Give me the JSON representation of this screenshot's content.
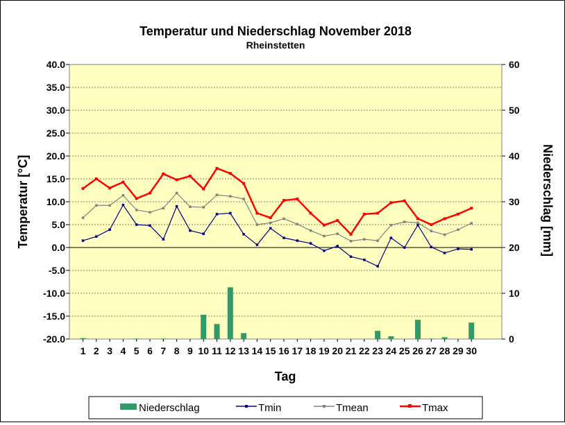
{
  "chart_data": {
    "type": "line",
    "title": "Temperatur und Niederschlag November 2018",
    "subtitle": "Rheinstetten",
    "xlabel": "Tag",
    "ylabel_left": "Temperatur [°C]",
    "ylabel_right": "Niederschlag [mm]",
    "ylim_left": [
      -20,
      40
    ],
    "ylim_right": [
      0,
      60
    ],
    "yticks_left": [
      "-20.0",
      "-15.0",
      "-10.0",
      "-5.0",
      "0.0",
      "5.0",
      "10.0",
      "15.0",
      "20.0",
      "25.0",
      "30.0",
      "35.0",
      "40.0"
    ],
    "yticks_right": [
      "0",
      "10",
      "20",
      "30",
      "40",
      "50",
      "60"
    ],
    "categories": [
      "1",
      "2",
      "3",
      "4",
      "5",
      "6",
      "7",
      "8",
      "9",
      "10",
      "11",
      "12",
      "13",
      "14",
      "15",
      "16",
      "17",
      "18",
      "19",
      "20",
      "21",
      "22",
      "23",
      "24",
      "25",
      "26",
      "27",
      "28",
      "29",
      "30"
    ],
    "grid": true,
    "legend_position": "bottom",
    "plot_background": "#ffffc0",
    "series": [
      {
        "name": "Niederschlag",
        "kind": "bar",
        "axis": "right",
        "color": "#339966",
        "values": [
          0.2,
          0,
          0,
          0,
          0.1,
          0,
          0.1,
          0,
          0,
          5.3,
          3.3,
          11.3,
          1.3,
          0,
          0,
          0,
          0,
          0,
          0,
          0,
          0,
          0,
          1.8,
          0.6,
          0,
          4.2,
          0.1,
          0.4,
          0,
          3.6
        ]
      },
      {
        "name": "Tmin",
        "kind": "line",
        "axis": "left",
        "color": "#000080",
        "values": [
          1.5,
          2.4,
          3.9,
          9.3,
          5.0,
          4.8,
          1.8,
          9.0,
          3.7,
          3.0,
          7.3,
          7.5,
          2.9,
          0.6,
          4.2,
          2.1,
          1.5,
          0.9,
          -0.7,
          0.3,
          -2.0,
          -2.7,
          -4.1,
          2.1,
          0.0,
          4.9,
          0.1,
          -1.2,
          -0.3,
          -0.4
        ]
      },
      {
        "name": "Tmean",
        "kind": "line",
        "axis": "left",
        "color": "#808080",
        "values": [
          6.5,
          9.2,
          9.2,
          11.4,
          8.2,
          7.7,
          8.6,
          11.9,
          8.9,
          8.8,
          11.5,
          11.2,
          10.6,
          5.0,
          5.4,
          6.3,
          5.1,
          3.7,
          2.5,
          3.0,
          1.4,
          1.8,
          1.5,
          4.9,
          5.6,
          5.4,
          3.6,
          2.8,
          3.9,
          5.3
        ]
      },
      {
        "name": "Tmax",
        "kind": "line",
        "axis": "left",
        "color": "#ff0000",
        "values": [
          12.9,
          15.0,
          13.0,
          14.3,
          10.7,
          11.9,
          16.1,
          14.8,
          15.6,
          12.8,
          17.3,
          16.2,
          14.0,
          7.5,
          6.5,
          10.3,
          10.6,
          7.5,
          4.9,
          5.9,
          2.9,
          7.3,
          7.5,
          9.8,
          10.2,
          6.3,
          5.0,
          6.3,
          7.3,
          8.6
        ]
      }
    ]
  }
}
